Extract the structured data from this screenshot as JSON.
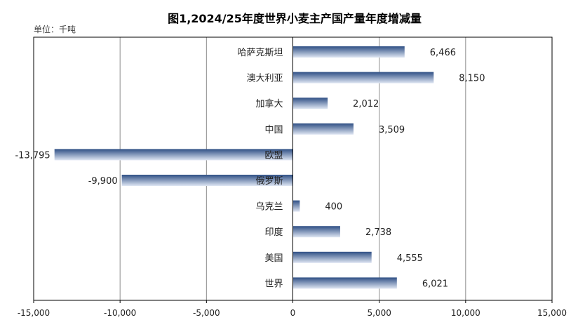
{
  "chart_data": {
    "type": "bar",
    "orientation": "horizontal",
    "title": "图1,2024/25年度世界小麦主产国产量年度增减量",
    "unit": "单位：千吨",
    "categories": [
      "哈萨克斯坦",
      "澳大利亚",
      "加拿大",
      "中国",
      "欧盟",
      "俄罗斯",
      "乌克兰",
      "印度",
      "美国",
      "世界"
    ],
    "values": [
      6466,
      8150,
      2012,
      3509,
      -13795,
      -9900,
      400,
      2738,
      4555,
      6021
    ],
    "value_labels": [
      "6,466",
      "8,150",
      "2,012",
      "3,509",
      "-13,795",
      "-9,900",
      "400",
      "2,738",
      "4,555",
      "6,021"
    ],
    "xlim": [
      -15000,
      15000
    ],
    "xticks": [
      -15000,
      -10000,
      -5000,
      0,
      5000,
      10000,
      15000
    ],
    "xtick_labels": [
      "-15,000",
      "-10,000",
      "-5,000",
      "0",
      "5,000",
      "10,000",
      "15,000"
    ],
    "grid": true,
    "legend": "none",
    "colors": {
      "bar_dark": "#2f4f85",
      "bar_light": "#dfe6f3",
      "grid": "#8c8c8c",
      "frame": "#000000"
    }
  }
}
